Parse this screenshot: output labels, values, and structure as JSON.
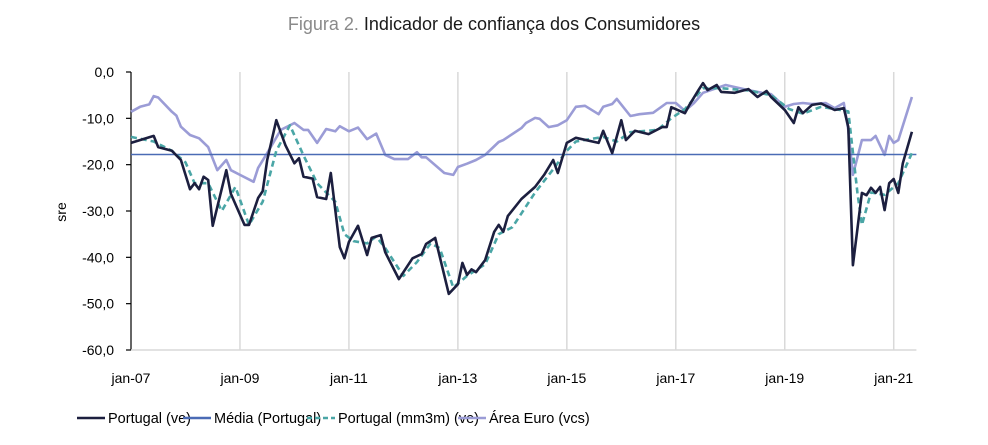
{
  "chart_data": {
    "type": "line",
    "title_prefix": "Figura 2.",
    "title": "Indicador de confiança dos Consumidores",
    "xlabel": "",
    "ylabel": "sre",
    "ylim": [
      -60,
      0
    ],
    "yticks": [
      0,
      -10,
      -20,
      -30,
      -40,
      -50,
      -60
    ],
    "ytick_labels": [
      "0,0",
      "-10,0",
      "-20,0",
      "-30,0",
      "-40,0",
      "-50,0",
      "-60,0"
    ],
    "xlim": [
      "2007-01",
      "2021-06"
    ],
    "xticks": [
      "2007-01",
      "2009-01",
      "2011-01",
      "2013-01",
      "2015-01",
      "2017-01",
      "2019-01",
      "2021-01"
    ],
    "xtick_labels": [
      "jan-07",
      "jan-09",
      "jan-11",
      "jan-13",
      "jan-15",
      "jan-17",
      "jan-19",
      "jan-21"
    ],
    "grid": "vertical",
    "legend_placement": "bottom",
    "colors": {
      "portugal": "#1c1f3f",
      "media": "#4a6bb5",
      "mm3m": "#4aa6a6",
      "euro": "#9b9cd6"
    },
    "series": [
      {
        "name": "Portugal (ve)",
        "key": "portugal",
        "style": "solid",
        "points": [
          [
            "2007-01",
            -15.3
          ],
          [
            "2007-06",
            -13.8
          ],
          [
            "2007-07",
            -16.2
          ],
          [
            "2007-10",
            -17
          ],
          [
            "2007-12",
            -19
          ],
          [
            "2008-02",
            -25.3
          ],
          [
            "2008-03",
            -24
          ],
          [
            "2008-04",
            -25.3
          ],
          [
            "2008-05",
            -22.6
          ],
          [
            "2008-06",
            -23.3
          ],
          [
            "2008-07",
            -33.2
          ],
          [
            "2008-10",
            -21.2
          ],
          [
            "2008-11",
            -26.3
          ],
          [
            "2009-02",
            -33
          ],
          [
            "2009-03",
            -33
          ],
          [
            "2009-05",
            -27.2
          ],
          [
            "2009-06",
            -25.7
          ],
          [
            "2009-07",
            -19
          ],
          [
            "2009-09",
            -10.4
          ],
          [
            "2009-11",
            -15.8
          ],
          [
            "2010-01",
            -19.7
          ],
          [
            "2010-02",
            -18.6
          ],
          [
            "2010-03",
            -22.6
          ],
          [
            "2010-05",
            -23
          ],
          [
            "2010-06",
            -27
          ],
          [
            "2010-08",
            -27.4
          ],
          [
            "2010-09",
            -21.8
          ],
          [
            "2010-11",
            -37.8
          ],
          [
            "2010-12",
            -40.2
          ],
          [
            "2011-01",
            -36.7
          ],
          [
            "2011-03",
            -33.2
          ],
          [
            "2011-05",
            -39.5
          ],
          [
            "2011-06",
            -35.8
          ],
          [
            "2011-08",
            -35.2
          ],
          [
            "2011-09",
            -38.9
          ],
          [
            "2011-12",
            -44.7
          ],
          [
            "2012-03",
            -40.2
          ],
          [
            "2012-05",
            -39.3
          ],
          [
            "2012-06",
            -37.1
          ],
          [
            "2012-08",
            -35.8
          ],
          [
            "2012-11",
            -47.9
          ],
          [
            "2013-01",
            -45.8
          ],
          [
            "2013-02",
            -41.2
          ],
          [
            "2013-03",
            -43.8
          ],
          [
            "2013-04",
            -42.6
          ],
          [
            "2013-05",
            -43.2
          ],
          [
            "2013-07",
            -40.6
          ],
          [
            "2013-09",
            -34.5
          ],
          [
            "2013-10",
            -33
          ],
          [
            "2013-11",
            -34.5
          ],
          [
            "2013-12",
            -31.1
          ],
          [
            "2014-03",
            -27.4
          ],
          [
            "2014-06",
            -24.8
          ],
          [
            "2014-08",
            -22.2
          ],
          [
            "2014-10",
            -19
          ],
          [
            "2014-11",
            -21.8
          ],
          [
            "2015-01",
            -15.3
          ],
          [
            "2015-03",
            -14.2
          ],
          [
            "2015-08",
            -15.3
          ],
          [
            "2015-09",
            -12.7
          ],
          [
            "2015-11",
            -17.5
          ],
          [
            "2016-01",
            -10.4
          ],
          [
            "2016-02",
            -14.7
          ],
          [
            "2016-04",
            -12.7
          ],
          [
            "2016-07",
            -13.4
          ],
          [
            "2016-10",
            -11.9
          ],
          [
            "2016-11",
            -11.9
          ],
          [
            "2016-12",
            -7.6
          ],
          [
            "2017-03",
            -8.9
          ],
          [
            "2017-04",
            -7.1
          ],
          [
            "2017-06",
            -3.9
          ],
          [
            "2017-07",
            -2.4
          ],
          [
            "2017-08",
            -3.9
          ],
          [
            "2017-10",
            -2.8
          ],
          [
            "2017-11",
            -4.3
          ],
          [
            "2018-02",
            -4.5
          ],
          [
            "2018-05",
            -3.7
          ],
          [
            "2018-07",
            -5.4
          ],
          [
            "2018-09",
            -4.1
          ],
          [
            "2018-10",
            -5.4
          ],
          [
            "2019-01",
            -8.2
          ],
          [
            "2019-03",
            -11
          ],
          [
            "2019-04",
            -7.6
          ],
          [
            "2019-05",
            -8.9
          ],
          [
            "2019-07",
            -7.1
          ],
          [
            "2019-09",
            -6.8
          ],
          [
            "2019-12",
            -8.2
          ],
          [
            "2020-02",
            -7.8
          ],
          [
            "2020-03",
            -11.9
          ],
          [
            "2020-04",
            -41.7
          ],
          [
            "2020-06",
            -26.1
          ],
          [
            "2020-07",
            -26.6
          ],
          [
            "2020-08",
            -25
          ],
          [
            "2020-09",
            -26.1
          ],
          [
            "2020-10",
            -24.8
          ],
          [
            "2020-11",
            -29.8
          ],
          [
            "2020-12",
            -24
          ],
          [
            "2021-01",
            -23.1
          ],
          [
            "2021-02",
            -26.1
          ],
          [
            "2021-03",
            -19.7
          ],
          [
            "2021-05",
            -12.9
          ]
        ]
      },
      {
        "name": "Média (Portugal)",
        "key": "media",
        "style": "solid",
        "points": [
          [
            "2007-01",
            -17.8
          ],
          [
            "2021-06",
            -17.8
          ]
        ]
      },
      {
        "name": "Portugal (mm3m) (ve)",
        "key": "mm3m",
        "style": "dashed",
        "points": [
          [
            "2007-01",
            -14
          ],
          [
            "2007-06",
            -15
          ],
          [
            "2007-10",
            -17
          ],
          [
            "2008-01",
            -19.5
          ],
          [
            "2008-03",
            -24
          ],
          [
            "2008-06",
            -24
          ],
          [
            "2008-09",
            -30
          ],
          [
            "2008-12",
            -24.8
          ],
          [
            "2009-03",
            -33
          ],
          [
            "2009-06",
            -28
          ],
          [
            "2009-09",
            -17
          ],
          [
            "2009-12",
            -11.5
          ],
          [
            "2010-03",
            -18
          ],
          [
            "2010-06",
            -24
          ],
          [
            "2010-08",
            -26
          ],
          [
            "2010-10",
            -28
          ],
          [
            "2010-12",
            -35
          ],
          [
            "2011-02",
            -36.5
          ],
          [
            "2011-05",
            -37
          ],
          [
            "2011-07",
            -35.5
          ],
          [
            "2011-09",
            -38
          ],
          [
            "2012-01",
            -44
          ],
          [
            "2012-04",
            -41
          ],
          [
            "2012-07",
            -37
          ],
          [
            "2012-09",
            -38
          ],
          [
            "2012-12",
            -46.5
          ],
          [
            "2013-03",
            -44
          ],
          [
            "2013-07",
            -41.5
          ],
          [
            "2013-10",
            -35
          ],
          [
            "2014-01",
            -33.5
          ],
          [
            "2014-06",
            -26
          ],
          [
            "2014-10",
            -21
          ],
          [
            "2015-01",
            -17
          ],
          [
            "2015-03",
            -15
          ],
          [
            "2015-09",
            -14
          ],
          [
            "2015-12",
            -15
          ],
          [
            "2016-03",
            -13
          ],
          [
            "2016-09",
            -12.5
          ],
          [
            "2016-12",
            -10
          ],
          [
            "2017-03",
            -8
          ],
          [
            "2017-07",
            -3.5
          ],
          [
            "2017-11",
            -3.5
          ],
          [
            "2018-05",
            -4
          ],
          [
            "2018-10",
            -5
          ],
          [
            "2019-02",
            -8
          ],
          [
            "2019-05",
            -9
          ],
          [
            "2019-09",
            -7.5
          ],
          [
            "2020-03",
            -8.5
          ],
          [
            "2020-05",
            -26
          ],
          [
            "2020-06",
            -33
          ],
          [
            "2020-08",
            -26
          ],
          [
            "2020-11",
            -26.5
          ],
          [
            "2021-02",
            -24
          ],
          [
            "2021-05",
            -17.5
          ]
        ]
      },
      {
        "name": "Área Euro (vcs)",
        "key": "euro",
        "style": "solid",
        "points": [
          [
            "2007-01",
            -8.6
          ],
          [
            "2007-03",
            -7.5
          ],
          [
            "2007-05",
            -7
          ],
          [
            "2007-06",
            -5.2
          ],
          [
            "2007-07",
            -5.5
          ],
          [
            "2007-10",
            -8.6
          ],
          [
            "2007-11",
            -9.4
          ],
          [
            "2007-12",
            -11.8
          ],
          [
            "2008-02",
            -13.6
          ],
          [
            "2008-04",
            -14.3
          ],
          [
            "2008-06",
            -16.2
          ],
          [
            "2008-08",
            -21.2
          ],
          [
            "2008-10",
            -19
          ],
          [
            "2008-11",
            -21.2
          ],
          [
            "2009-01",
            -22.2
          ],
          [
            "2009-04",
            -23.7
          ],
          [
            "2009-05",
            -20.7
          ],
          [
            "2009-07",
            -17.5
          ],
          [
            "2009-10",
            -12.5
          ],
          [
            "2010-01",
            -11
          ],
          [
            "2010-03",
            -12.5
          ],
          [
            "2010-04",
            -12.5
          ],
          [
            "2010-06",
            -15.3
          ],
          [
            "2010-08",
            -12.3
          ],
          [
            "2010-10",
            -12.8
          ],
          [
            "2010-11",
            -11.7
          ],
          [
            "2011-01",
            -12.8
          ],
          [
            "2011-03",
            -12
          ],
          [
            "2011-05",
            -14.5
          ],
          [
            "2011-07",
            -13.3
          ],
          [
            "2011-09",
            -17.9
          ],
          [
            "2011-11",
            -18.8
          ],
          [
            "2012-02",
            -18.8
          ],
          [
            "2012-04",
            -17.3
          ],
          [
            "2012-05",
            -18.4
          ],
          [
            "2012-06",
            -18.4
          ],
          [
            "2012-10",
            -21.8
          ],
          [
            "2012-12",
            -22.2
          ],
          [
            "2013-01",
            -20.5
          ],
          [
            "2013-03",
            -19.8
          ],
          [
            "2013-05",
            -19
          ],
          [
            "2013-07",
            -17.9
          ],
          [
            "2013-10",
            -15.1
          ],
          [
            "2013-11",
            -14.7
          ],
          [
            "2014-03",
            -12.1
          ],
          [
            "2014-04",
            -11
          ],
          [
            "2014-06",
            -9.9
          ],
          [
            "2014-07",
            -10.1
          ],
          [
            "2014-09",
            -11.9
          ],
          [
            "2014-11",
            -11.5
          ],
          [
            "2015-01",
            -10.4
          ],
          [
            "2015-03",
            -7.5
          ],
          [
            "2015-05",
            -7.3
          ],
          [
            "2015-08",
            -9.1
          ],
          [
            "2015-09",
            -7.5
          ],
          [
            "2015-11",
            -6.9
          ],
          [
            "2015-12",
            -5.8
          ],
          [
            "2016-03",
            -9.5
          ],
          [
            "2016-05",
            -9.1
          ],
          [
            "2016-08",
            -8.8
          ],
          [
            "2016-11",
            -6.7
          ],
          [
            "2017-01",
            -6.7
          ],
          [
            "2017-03",
            -8.4
          ],
          [
            "2017-05",
            -6.7
          ],
          [
            "2017-07",
            -4.5
          ],
          [
            "2017-12",
            -2.8
          ],
          [
            "2018-05",
            -3.9
          ],
          [
            "2018-08",
            -4.5
          ],
          [
            "2018-10",
            -4.8
          ],
          [
            "2019-01",
            -7.5
          ],
          [
            "2019-03",
            -6.9
          ],
          [
            "2019-05",
            -6.7
          ],
          [
            "2019-07",
            -6.9
          ],
          [
            "2019-10",
            -6.7
          ],
          [
            "2019-12",
            -7.8
          ],
          [
            "2020-02",
            -6.7
          ],
          [
            "2020-03",
            -12.5
          ],
          [
            "2020-04",
            -22.2
          ],
          [
            "2020-06",
            -14.7
          ],
          [
            "2020-08",
            -14.7
          ],
          [
            "2020-09",
            -13.8
          ],
          [
            "2020-11",
            -17.9
          ],
          [
            "2020-12",
            -13.8
          ],
          [
            "2021-01",
            -15.3
          ],
          [
            "2021-02",
            -14.7
          ],
          [
            "2021-05",
            -5.4
          ]
        ]
      }
    ]
  }
}
